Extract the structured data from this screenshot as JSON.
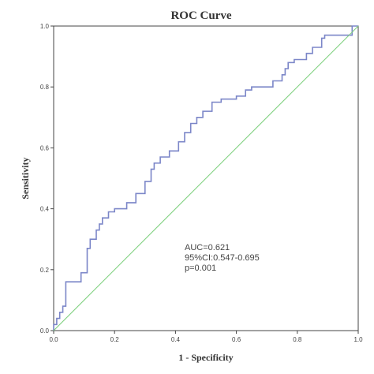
{
  "chart_data": {
    "type": "line",
    "title": "ROC Curve",
    "xlabel": "1 - Specificity",
    "ylabel": "Sensitivity",
    "xlim": [
      0.0,
      1.0
    ],
    "ylim": [
      0.0,
      1.0
    ],
    "x_ticks": [
      "0.0",
      "0.2",
      "0.4",
      "0.6",
      "0.8",
      "1.0"
    ],
    "y_ticks": [
      "0.0",
      "0.2",
      "0.4",
      "0.6",
      "0.8",
      "1.0"
    ],
    "grid": false,
    "annotation_lines": [
      "AUC=0.621",
      "95%CI:0.547-0.695",
      "p=0.001"
    ],
    "series": [
      {
        "role": "roc",
        "color": "#7b86c8",
        "x": [
          0.0,
          0.0,
          0.01,
          0.01,
          0.02,
          0.02,
          0.03,
          0.03,
          0.04,
          0.04,
          0.09,
          0.09,
          0.11,
          0.11,
          0.12,
          0.12,
          0.14,
          0.14,
          0.15,
          0.15,
          0.16,
          0.16,
          0.18,
          0.18,
          0.2,
          0.2,
          0.24,
          0.24,
          0.27,
          0.27,
          0.3,
          0.3,
          0.32,
          0.32,
          0.33,
          0.33,
          0.35,
          0.35,
          0.38,
          0.38,
          0.41,
          0.41,
          0.43,
          0.43,
          0.45,
          0.45,
          0.47,
          0.47,
          0.49,
          0.49,
          0.52,
          0.52,
          0.55,
          0.55,
          0.6,
          0.6,
          0.63,
          0.63,
          0.65,
          0.65,
          0.68,
          0.68,
          0.72,
          0.72,
          0.75,
          0.75,
          0.76,
          0.76,
          0.77,
          0.77,
          0.79,
          0.79,
          0.83,
          0.83,
          0.85,
          0.85,
          0.88,
          0.88,
          0.89,
          0.89,
          0.98,
          0.98,
          1.0
        ],
        "y": [
          0.0,
          0.02,
          0.02,
          0.04,
          0.04,
          0.06,
          0.06,
          0.08,
          0.08,
          0.16,
          0.16,
          0.19,
          0.19,
          0.27,
          0.27,
          0.3,
          0.3,
          0.33,
          0.33,
          0.35,
          0.35,
          0.37,
          0.37,
          0.39,
          0.39,
          0.4,
          0.4,
          0.42,
          0.42,
          0.45,
          0.45,
          0.49,
          0.49,
          0.53,
          0.53,
          0.55,
          0.55,
          0.57,
          0.57,
          0.59,
          0.59,
          0.62,
          0.62,
          0.65,
          0.65,
          0.68,
          0.68,
          0.7,
          0.7,
          0.72,
          0.72,
          0.75,
          0.75,
          0.76,
          0.76,
          0.77,
          0.77,
          0.79,
          0.79,
          0.8,
          0.8,
          0.8,
          0.8,
          0.82,
          0.82,
          0.84,
          0.84,
          0.86,
          0.86,
          0.88,
          0.88,
          0.89,
          0.89,
          0.91,
          0.91,
          0.93,
          0.93,
          0.96,
          0.96,
          0.97,
          0.97,
          1.0,
          1.0
        ]
      },
      {
        "role": "reference",
        "color": "#7ed07e",
        "x": [
          0.0,
          1.0
        ],
        "y": [
          0.0,
          1.0
        ]
      }
    ]
  }
}
